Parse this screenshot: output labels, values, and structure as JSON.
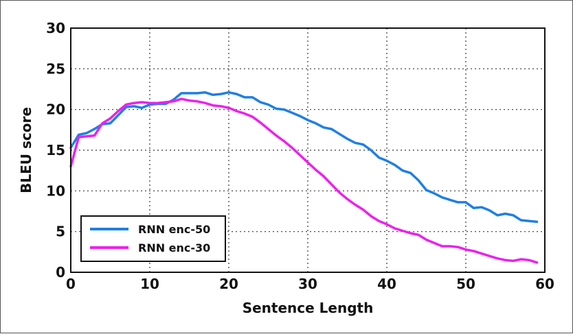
{
  "chart_data": {
    "type": "line",
    "title": "",
    "xlabel": "Sentence Length",
    "ylabel": "BLEU score",
    "xlim": [
      0,
      60
    ],
    "ylim": [
      0,
      30
    ],
    "xticks": [
      0,
      10,
      20,
      30,
      40,
      50,
      60
    ],
    "yticks": [
      0,
      5,
      10,
      15,
      20,
      25,
      30
    ],
    "grid": true,
    "legend_position": "bottom-left",
    "series": [
      {
        "name": "RNN enc-50",
        "color": "#1e7fe6",
        "x": [
          0,
          1,
          2,
          3,
          4,
          5,
          6,
          7,
          8,
          9,
          10,
          11,
          12,
          13,
          14,
          15,
          16,
          17,
          18,
          19,
          20,
          21,
          22,
          23,
          24,
          25,
          26,
          27,
          28,
          29,
          30,
          31,
          32,
          33,
          34,
          35,
          36,
          37,
          38,
          39,
          40,
          41,
          42,
          43,
          44,
          45,
          46,
          47,
          48,
          49,
          50,
          51,
          52,
          53,
          54,
          55,
          56,
          57,
          58,
          59
        ],
        "y": [
          15.3,
          16.9,
          17.1,
          17.6,
          18.2,
          18.3,
          19.3,
          20.3,
          20.4,
          20.2,
          20.6,
          20.7,
          20.7,
          21.2,
          22.0,
          22.0,
          22.0,
          22.1,
          21.8,
          21.9,
          22.1,
          21.9,
          21.5,
          21.5,
          20.9,
          20.6,
          20.1,
          20.0,
          19.6,
          19.2,
          18.7,
          18.3,
          17.8,
          17.6,
          17.0,
          16.4,
          15.9,
          15.7,
          15.0,
          14.1,
          13.7,
          13.2,
          12.5,
          12.2,
          11.3,
          10.1,
          9.7,
          9.2,
          8.9,
          8.6,
          8.6,
          7.9,
          8.0,
          7.6,
          7.0,
          7.2,
          7.0,
          6.4,
          6.3,
          6.2
        ]
      },
      {
        "name": "RNN enc-30",
        "color": "#ee1fee",
        "x": [
          0,
          1,
          2,
          3,
          4,
          5,
          6,
          7,
          8,
          9,
          10,
          11,
          12,
          13,
          14,
          15,
          16,
          17,
          18,
          19,
          20,
          21,
          22,
          23,
          24,
          25,
          26,
          27,
          28,
          29,
          30,
          31,
          32,
          33,
          34,
          35,
          36,
          37,
          38,
          39,
          40,
          41,
          42,
          43,
          44,
          45,
          46,
          47,
          48,
          49,
          50,
          51,
          52,
          53,
          54,
          55,
          56,
          57,
          58,
          59
        ],
        "y": [
          13.0,
          16.6,
          16.7,
          16.8,
          18.3,
          18.9,
          19.8,
          20.6,
          20.8,
          20.9,
          20.8,
          20.8,
          20.9,
          21.0,
          21.3,
          21.1,
          21.0,
          20.8,
          20.5,
          20.4,
          20.2,
          19.8,
          19.5,
          19.1,
          18.4,
          17.6,
          16.8,
          16.1,
          15.3,
          14.4,
          13.5,
          12.6,
          11.8,
          10.8,
          9.8,
          9.0,
          8.3,
          7.7,
          6.9,
          6.3,
          5.9,
          5.4,
          5.1,
          4.8,
          4.6,
          4.0,
          3.6,
          3.2,
          3.2,
          3.1,
          2.8,
          2.6,
          2.3,
          2.0,
          1.7,
          1.5,
          1.4,
          1.6,
          1.5,
          1.2
        ]
      }
    ]
  }
}
